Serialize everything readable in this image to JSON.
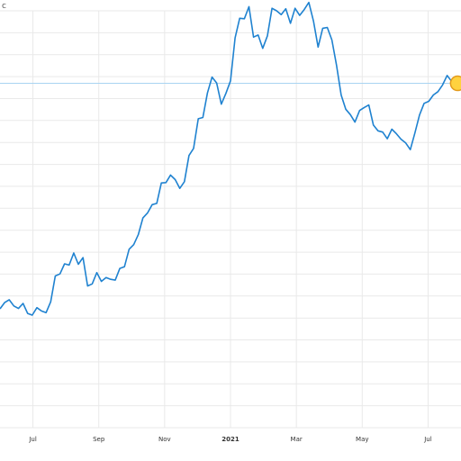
{
  "corner_text": "c",
  "chart_data": {
    "type": "line",
    "title": "",
    "xlabel": "",
    "ylabel": "",
    "grid": true,
    "x_tick_labels": [
      "Jul",
      "Sep",
      "Nov",
      "2021",
      "Mar",
      "May",
      "Jul"
    ],
    "x_tick_positions": [
      1.0,
      3.0,
      5.0,
      7.0,
      9.0,
      11.0,
      13.0
    ],
    "xlim": [
      0.0,
      14.0
    ],
    "ylim": [
      0,
      100
    ],
    "reference_line_value": 82.6,
    "colors": {
      "line": "#1f82d0",
      "grid": "#e9e9e9",
      "reference": "#a9d4f2",
      "marker_fill": "#ffd23f",
      "marker_stroke": "#e39a1c",
      "tick_text": "#333333"
    },
    "series": [
      {
        "x": [
          0.0,
          0.14,
          0.28,
          0.42,
          0.56,
          0.7,
          0.84,
          0.98,
          1.12,
          1.26,
          1.4,
          1.54,
          1.68,
          1.82,
          1.96,
          2.1,
          2.24,
          2.38,
          2.52,
          2.66,
          2.8,
          2.94,
          3.08,
          3.22,
          3.36,
          3.5,
          3.64,
          3.78,
          3.92,
          4.06,
          4.2,
          4.34,
          4.48,
          4.62,
          4.76,
          4.9,
          5.04,
          5.18,
          5.32,
          5.46,
          5.6,
          5.74,
          5.88,
          6.02,
          6.16,
          6.3,
          6.44,
          6.58,
          6.72,
          6.86,
          7.0,
          7.14,
          7.28,
          7.42,
          7.56,
          7.7,
          7.84,
          7.98,
          8.12,
          8.26,
          8.4,
          8.54,
          8.68,
          8.82,
          8.96,
          9.1,
          9.24,
          9.38,
          9.52,
          9.66,
          9.8,
          9.94,
          10.08,
          10.22,
          10.36,
          10.5,
          10.64,
          10.78,
          10.92,
          11.06,
          11.2,
          11.34,
          11.48,
          11.62,
          11.76,
          11.9,
          12.04,
          12.18,
          12.32,
          12.46,
          12.6,
          12.74,
          12.88,
          13.02,
          13.16,
          13.3,
          13.44,
          13.58,
          13.72,
          13.86,
          14.0
        ],
        "values": [
          28.5,
          30.0,
          30.7,
          29.2,
          28.6,
          29.8,
          27.4,
          27.0,
          28.8,
          28.0,
          27.6,
          30.2,
          36.4,
          36.9,
          39.3,
          39.0,
          41.9,
          39.2,
          40.8,
          34.0,
          34.5,
          37.2,
          35.1,
          36.0,
          35.6,
          35.4,
          38.2,
          38.6,
          42.8,
          43.9,
          46.3,
          50.3,
          51.5,
          53.5,
          53.8,
          58.7,
          58.8,
          60.6,
          59.5,
          57.4,
          59.0,
          65.3,
          67.0,
          74.1,
          74.4,
          80.3,
          84.1,
          82.7,
          77.6,
          80.2,
          83.2,
          93.5,
          98.2,
          98.1,
          101.0,
          93.7,
          94.2,
          91.0,
          94.0,
          100.6,
          100.0,
          99.1,
          100.5,
          97.0,
          100.6,
          98.9,
          100.3,
          102.0,
          97.5,
          91.3,
          95.8,
          96.0,
          93.0,
          86.9,
          79.8,
          76.4,
          75.1,
          73.3,
          76.1,
          76.8,
          77.4,
          72.6,
          71.2,
          70.9,
          69.3,
          71.6,
          70.5,
          69.2,
          68.3,
          66.7,
          70.7,
          75.0,
          77.8,
          78.3,
          79.8,
          80.6,
          82.2,
          84.5,
          83.0,
          83.4,
          82.6
        ]
      }
    ],
    "last_point_marker": {
      "x": 13.9,
      "y": 82.6
    }
  }
}
